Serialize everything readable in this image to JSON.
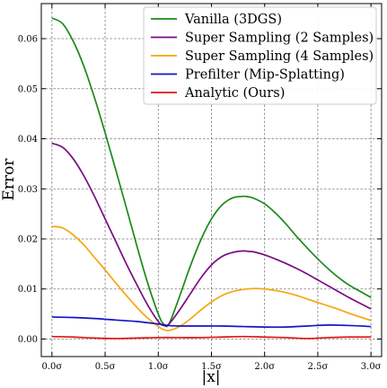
{
  "chart_data": {
    "type": "line",
    "title": "",
    "xlabel": "|x|",
    "ylabel": "Error",
    "xlim": [
      -0.1,
      3.1
    ],
    "ylim": [
      -0.0035,
      0.067
    ],
    "grid": true,
    "legend_position": "top-right",
    "x_ticks": [
      0.0,
      0.5,
      1.0,
      1.5,
      2.0,
      2.5,
      3.0
    ],
    "x_tick_labels": [
      "0.0σ",
      "0.5σ",
      "1.0σ",
      "1.5σ",
      "2.0σ",
      "2.5σ",
      "3.0σ"
    ],
    "y_ticks": [
      0.0,
      0.01,
      0.02,
      0.03,
      0.04,
      0.05,
      0.06
    ],
    "y_tick_labels": [
      "0.00",
      "0.01",
      "0.02",
      "0.03",
      "0.04",
      "0.05",
      "0.06"
    ],
    "series": [
      {
        "name": "Vanilla (3DGS)",
        "color": "#1a8a1a",
        "x": [
          0.0,
          0.1,
          0.2,
          0.3,
          0.4,
          0.5,
          0.6,
          0.7,
          0.8,
          0.9,
          1.0,
          1.05,
          1.1,
          1.2,
          1.3,
          1.4,
          1.5,
          1.6,
          1.7,
          1.8,
          1.85,
          1.9,
          2.0,
          2.1,
          2.2,
          2.3,
          2.4,
          2.5,
          2.6,
          2.7,
          2.8,
          2.9,
          3.0
        ],
        "y": [
          0.0641,
          0.063,
          0.0595,
          0.0545,
          0.0482,
          0.0412,
          0.0338,
          0.0262,
          0.0185,
          0.0112,
          0.005,
          0.003,
          0.003,
          0.0085,
          0.0145,
          0.0198,
          0.024,
          0.0268,
          0.0282,
          0.0285,
          0.0284,
          0.0281,
          0.027,
          0.0252,
          0.023,
          0.0205,
          0.0182,
          0.016,
          0.014,
          0.0122,
          0.0107,
          0.0095,
          0.0083
        ]
      },
      {
        "name": "Super Sampling (2 Samples)",
        "color": "#7b0c82",
        "x": [
          0.0,
          0.1,
          0.2,
          0.3,
          0.4,
          0.5,
          0.6,
          0.7,
          0.8,
          0.9,
          1.0,
          1.05,
          1.1,
          1.2,
          1.3,
          1.4,
          1.5,
          1.6,
          1.7,
          1.8,
          1.85,
          1.9,
          2.0,
          2.1,
          2.2,
          2.3,
          2.4,
          2.5,
          2.6,
          2.7,
          2.8,
          2.9,
          3.0
        ],
        "y": [
          0.0391,
          0.0383,
          0.036,
          0.0326,
          0.0285,
          0.024,
          0.0195,
          0.015,
          0.0108,
          0.0068,
          0.0035,
          0.0027,
          0.003,
          0.0058,
          0.009,
          0.0122,
          0.0148,
          0.0165,
          0.0173,
          0.0176,
          0.0175,
          0.0174,
          0.0168,
          0.016,
          0.0151,
          0.0141,
          0.013,
          0.0118,
          0.0106,
          0.0094,
          0.0082,
          0.0071,
          0.006
        ]
      },
      {
        "name": "Super Sampling (4 Samples)",
        "color": "#f5a70c",
        "x": [
          0.0,
          0.1,
          0.2,
          0.3,
          0.4,
          0.5,
          0.6,
          0.7,
          0.8,
          0.9,
          1.0,
          1.05,
          1.1,
          1.2,
          1.3,
          1.4,
          1.5,
          1.6,
          1.7,
          1.8,
          1.9,
          2.0,
          2.1,
          2.2,
          2.3,
          2.4,
          2.5,
          2.6,
          2.7,
          2.8,
          2.9,
          3.0
        ],
        "y": [
          0.0225,
          0.0222,
          0.0208,
          0.0188,
          0.0163,
          0.0138,
          0.0112,
          0.0087,
          0.0063,
          0.0042,
          0.0025,
          0.0019,
          0.0017,
          0.0025,
          0.004,
          0.0058,
          0.0074,
          0.0087,
          0.0095,
          0.0099,
          0.0101,
          0.01,
          0.0097,
          0.0093,
          0.0087,
          0.008,
          0.0073,
          0.0066,
          0.0059,
          0.0051,
          0.0044,
          0.0037
        ]
      },
      {
        "name": "Prefilter (Mip-Splatting)",
        "color": "#1414c8",
        "x": [
          0.0,
          0.2,
          0.4,
          0.6,
          0.8,
          1.0,
          1.1,
          1.2,
          1.4,
          1.6,
          1.8,
          2.0,
          2.2,
          2.4,
          2.6,
          2.8,
          3.0
        ],
        "y": [
          0.0044,
          0.0043,
          0.0041,
          0.0038,
          0.0035,
          0.003,
          0.0027,
          0.0026,
          0.0026,
          0.0026,
          0.0025,
          0.0024,
          0.0024,
          0.0026,
          0.0028,
          0.0027,
          0.0025
        ]
      },
      {
        "name": "Analytic (Ours)",
        "color": "#e01414",
        "x": [
          0.0,
          0.2,
          0.4,
          0.6,
          0.8,
          1.0,
          1.2,
          1.4,
          1.6,
          1.8,
          2.0,
          2.2,
          2.4,
          2.6,
          2.8,
          3.0
        ],
        "y": [
          0.0005,
          0.0004,
          0.0002,
          0.0001,
          0.0002,
          0.0003,
          0.0003,
          0.0003,
          0.0004,
          0.0005,
          0.0004,
          0.0003,
          0.0001,
          0.0003,
          0.0004,
          0.0004
        ]
      }
    ]
  }
}
